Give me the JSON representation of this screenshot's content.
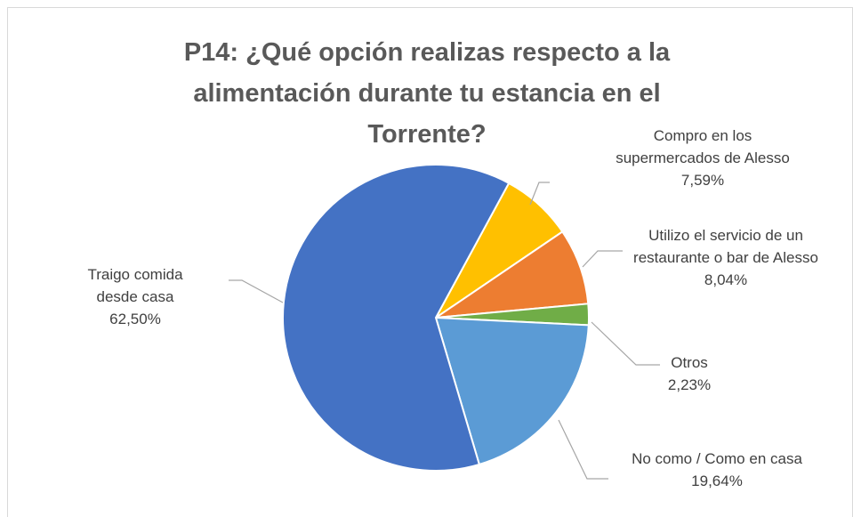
{
  "chart_data": {
    "type": "pie",
    "title": "P14: ¿Qué opción realizas respecto a la alimentación durante tu estancia en el Torrente?",
    "categories": [
      "Compro en los supermercados de Alesso",
      "Utilizo el servicio de un restaurante o bar de Alesso",
      "Otros",
      "No como / Como en casa",
      "Traigo comida desde casa"
    ],
    "values": [
      7.59,
      8.04,
      2.23,
      19.64,
      62.5
    ],
    "value_labels": [
      "7,59%",
      "8,04%",
      "2,23%",
      "19,64%",
      "62,50%"
    ],
    "colors": [
      "#ffc000",
      "#ed7d31",
      "#70ad47",
      "#5b9bd5",
      "#4472c4"
    ]
  }
}
